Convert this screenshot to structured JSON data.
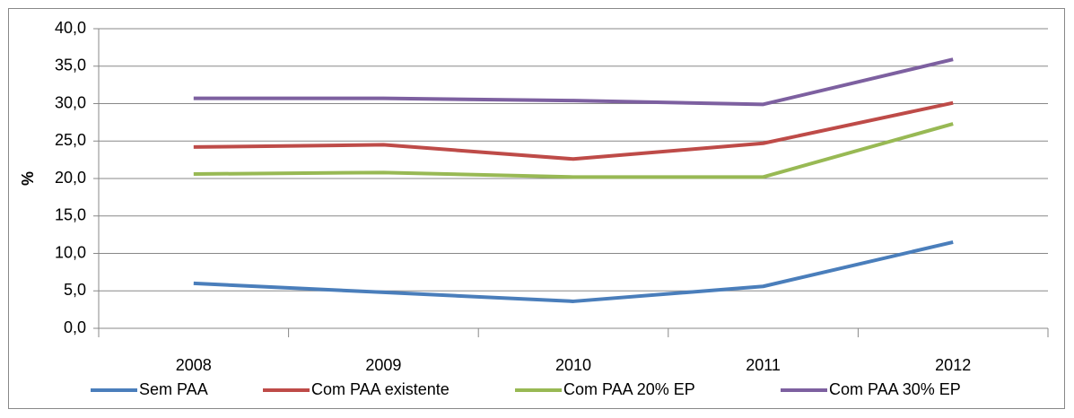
{
  "chart_data": {
    "type": "line",
    "y_label": "%",
    "categories": [
      "2008",
      "2009",
      "2010",
      "2011",
      "2012"
    ],
    "series": [
      {
        "name": "Sem PAA",
        "color": "#4a7ebb",
        "values": [
          6.0,
          4.8,
          3.6,
          5.6,
          11.5
        ]
      },
      {
        "name": "Com PAA existente",
        "color": "#be4b48",
        "values": [
          24.2,
          24.5,
          22.6,
          24.7,
          30.1
        ]
      },
      {
        "name": "Com PAA 20% EP",
        "color": "#98b954",
        "values": [
          20.6,
          20.8,
          20.2,
          20.2,
          27.3
        ]
      },
      {
        "name": "Com PAA 30% EP",
        "color": "#7d60a0",
        "values": [
          30.7,
          30.7,
          30.4,
          29.9,
          35.9
        ]
      }
    ],
    "ylim": [
      0,
      40
    ],
    "yticks": [
      {
        "value": 0,
        "label": "0,0"
      },
      {
        "value": 5,
        "label": "5,0"
      },
      {
        "value": 10,
        "label": "10,0"
      },
      {
        "value": 15,
        "label": "15,0"
      },
      {
        "value": 20,
        "label": "20,0"
      },
      {
        "value": 25,
        "label": "25,0"
      },
      {
        "value": 30,
        "label": "30,0"
      },
      {
        "value": 35,
        "label": "35,0"
      },
      {
        "value": 40,
        "label": "40,0"
      }
    ],
    "grid": true,
    "legend": "bottom"
  }
}
